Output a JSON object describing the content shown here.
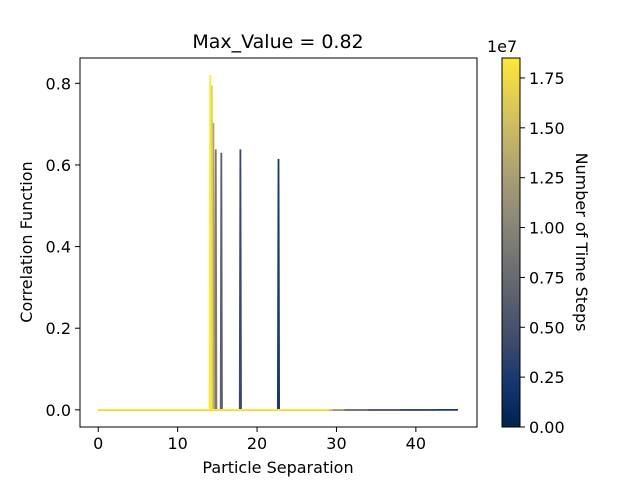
{
  "chart_data": {
    "type": "line",
    "title": "Max_Value = 0.82",
    "xlabel": "Particle Separation",
    "ylabel": "Correlation Function",
    "xlim": [
      -2.3,
      47.7
    ],
    "ylim": [
      -0.042,
      0.862
    ],
    "xticks": [
      0,
      10,
      20,
      30,
      40
    ],
    "yticks": [
      0.0,
      0.2,
      0.4,
      0.6,
      0.8
    ],
    "xtick_labels": [
      "0",
      "10",
      "20",
      "30",
      "40"
    ],
    "ytick_labels": [
      "0.0",
      "0.2",
      "0.4",
      "0.6",
      "0.8"
    ],
    "grid": false,
    "baseline_x_range": [
      0,
      45.3
    ],
    "series": [
      {
        "time_steps": 2500000,
        "peak_x": 22.7,
        "peak_y": 0.615,
        "x_end": 45.3
      },
      {
        "time_steps": 4000000,
        "peak_x": 17.9,
        "peak_y": 0.638,
        "x_end": 42.5
      },
      {
        "time_steps": 6500000,
        "peak_x": 15.5,
        "peak_y": 0.63,
        "x_end": 38.0
      },
      {
        "time_steps": 9000000,
        "peak_x": 14.8,
        "peak_y": 0.638,
        "x_end": 34.0
      },
      {
        "time_steps": 13000000,
        "peak_x": 14.5,
        "peak_y": 0.703,
        "x_end": 31.0
      },
      {
        "time_steps": 16500000,
        "peak_x": 14.3,
        "peak_y": 0.795,
        "x_end": 29.5
      },
      {
        "time_steps": 18500000,
        "peak_x": 14.1,
        "peak_y": 0.82,
        "x_end": 29.0
      }
    ],
    "colorbar": {
      "label": "Number of Time Steps",
      "offset_label": "1e7",
      "range": [
        0,
        18500000
      ],
      "ticks": [
        0.0,
        0.25,
        0.5,
        0.75,
        1.0,
        1.25,
        1.5,
        1.75
      ],
      "tick_labels": [
        "0.00",
        "0.25",
        "0.50",
        "0.75",
        "1.00",
        "1.25",
        "1.50",
        "1.75"
      ],
      "colormap": "cividis",
      "colors": [
        "#00224e",
        "#123570",
        "#3b496c",
        "#575d6d",
        "#707173",
        "#8a8779",
        "#a59c74",
        "#c3b369",
        "#e1cc55",
        "#fee838"
      ]
    }
  }
}
